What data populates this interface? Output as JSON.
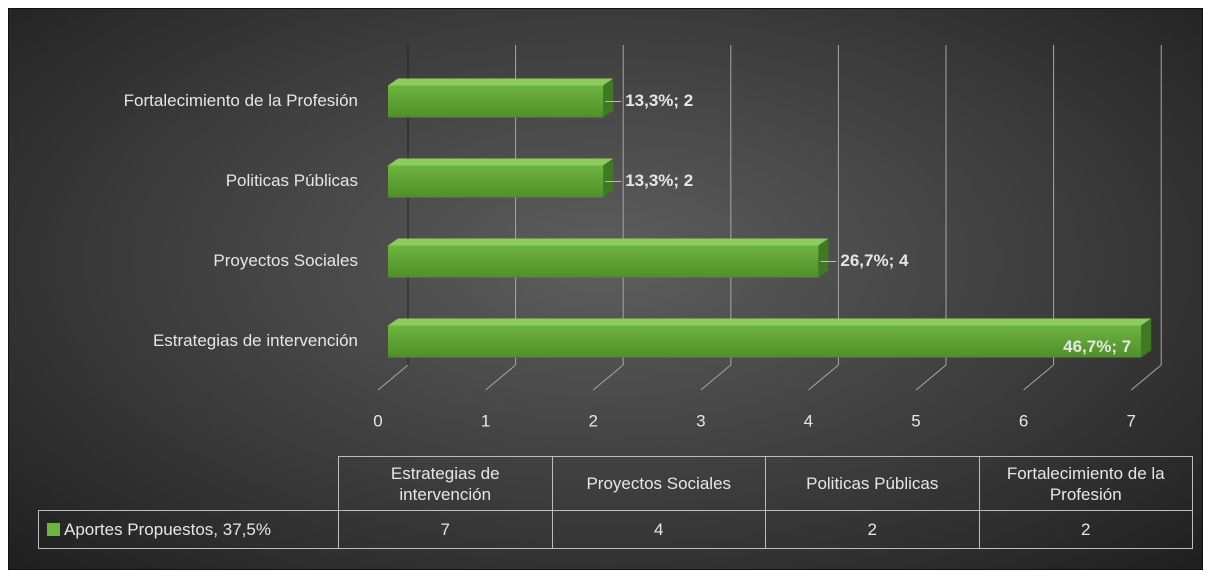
{
  "chart_data": {
    "type": "bar",
    "orientation": "horizontal",
    "categories": [
      "Estrategias de intervención",
      "Proyectos Sociales",
      "Politicas Públicas",
      "Fortalecimiento de la Profesión"
    ],
    "series": [
      {
        "name": "Aportes Propuestos, 37,5%",
        "color": "#6fb43f",
        "values": [
          7,
          4,
          2,
          2
        ],
        "value_labels": [
          "46,7%; 7",
          "26,7%; 4",
          "13,3%; 2",
          "13,3%; 2"
        ]
      }
    ],
    "xlim": [
      0,
      7
    ],
    "xticks": [
      0,
      1,
      2,
      3,
      4,
      5,
      6,
      7
    ],
    "grid": true,
    "data_table": true
  }
}
